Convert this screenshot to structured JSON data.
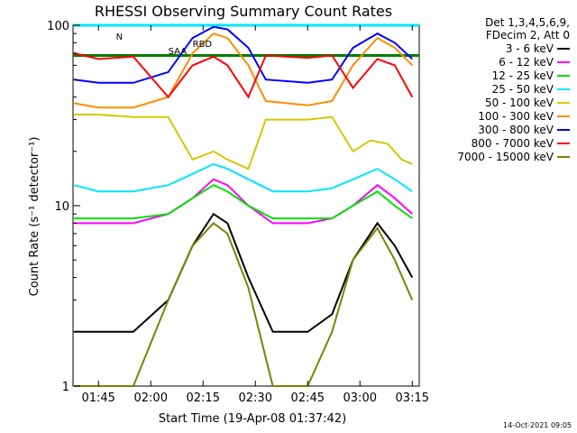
{
  "chart_data": {
    "type": "line",
    "title": "RHESSI Observing Summary Count Rates",
    "xlabel": "Start Time (19-Apr-08 01:37:42)",
    "ylabel": "Count Rate (s⁻¹ detector⁻¹)",
    "yscale": "log",
    "ylim": [
      1,
      100
    ],
    "xlim": [
      "01:37:42",
      "03:17:00"
    ],
    "x_ticks": [
      "01:45",
      "02:00",
      "02:15",
      "02:30",
      "02:45",
      "03:00",
      "03:15"
    ],
    "y_ticks": [
      "1",
      "10",
      "100"
    ],
    "legend_header": [
      "Det 1,3,4,5,6,9,",
      "FDecim 2, Att 0"
    ],
    "legend_placement": "right",
    "flags": [
      {
        "label": "N",
        "color": "#00e5ff"
      },
      {
        "label": "SAA",
        "color": "#008000"
      },
      {
        "label": "RBD",
        "color": "#008000"
      }
    ],
    "series": [
      {
        "name": "3 - 6 keV",
        "color": "#000000",
        "points": [
          [
            "01:38",
            2
          ],
          [
            "01:45",
            2
          ],
          [
            "01:55",
            2
          ],
          [
            "02:05",
            3
          ],
          [
            "02:12",
            6
          ],
          [
            "02:18",
            9
          ],
          [
            "02:22",
            8
          ],
          [
            "02:28",
            4
          ],
          [
            "02:35",
            2
          ],
          [
            "02:45",
            2
          ],
          [
            "02:52",
            2.5
          ],
          [
            "02:58",
            5
          ],
          [
            "03:05",
            8
          ],
          [
            "03:10",
            6
          ],
          [
            "03:15",
            4
          ]
        ]
      },
      {
        "name": "6 - 12 keV",
        "color": "#ff00ff",
        "points": [
          [
            "01:38",
            8
          ],
          [
            "01:45",
            8
          ],
          [
            "01:55",
            8
          ],
          [
            "02:05",
            9
          ],
          [
            "02:12",
            11
          ],
          [
            "02:18",
            14
          ],
          [
            "02:22",
            13
          ],
          [
            "02:28",
            10
          ],
          [
            "02:35",
            8
          ],
          [
            "02:45",
            8
          ],
          [
            "02:52",
            8.5
          ],
          [
            "02:58",
            10
          ],
          [
            "03:05",
            13
          ],
          [
            "03:10",
            11
          ],
          [
            "03:15",
            9
          ]
        ]
      },
      {
        "name": "12 - 25 keV",
        "color": "#00e000",
        "points": [
          [
            "01:38",
            8.5
          ],
          [
            "01:45",
            8.5
          ],
          [
            "01:55",
            8.5
          ],
          [
            "02:05",
            9
          ],
          [
            "02:12",
            11
          ],
          [
            "02:18",
            13
          ],
          [
            "02:22",
            12
          ],
          [
            "02:28",
            10
          ],
          [
            "02:35",
            8.5
          ],
          [
            "02:45",
            8.5
          ],
          [
            "02:52",
            8.5
          ],
          [
            "02:58",
            10
          ],
          [
            "03:05",
            12
          ],
          [
            "03:10",
            10
          ],
          [
            "03:15",
            8.5
          ]
        ]
      },
      {
        "name": "25 - 50 keV",
        "color": "#00e5ff",
        "points": [
          [
            "01:38",
            13
          ],
          [
            "01:45",
            12
          ],
          [
            "01:55",
            12
          ],
          [
            "02:05",
            13
          ],
          [
            "02:12",
            15
          ],
          [
            "02:18",
            17
          ],
          [
            "02:22",
            16
          ],
          [
            "02:28",
            14
          ],
          [
            "02:35",
            12
          ],
          [
            "02:45",
            12
          ],
          [
            "02:52",
            12.5
          ],
          [
            "02:58",
            14
          ],
          [
            "03:05",
            16
          ],
          [
            "03:10",
            14
          ],
          [
            "03:15",
            12
          ]
        ]
      },
      {
        "name": "50 - 100 keV",
        "color": "#d4c800",
        "points": [
          [
            "01:38",
            32
          ],
          [
            "01:45",
            32
          ],
          [
            "01:55",
            31
          ],
          [
            "02:05",
            31
          ],
          [
            "02:12",
            18
          ],
          [
            "02:18",
            20
          ],
          [
            "02:22",
            18
          ],
          [
            "02:28",
            16
          ],
          [
            "02:33",
            30
          ],
          [
            "02:45",
            30
          ],
          [
            "02:52",
            31
          ],
          [
            "02:58",
            20
          ],
          [
            "03:03",
            23
          ],
          [
            "03:08",
            22
          ],
          [
            "03:12",
            18
          ],
          [
            "03:15",
            17
          ]
        ]
      },
      {
        "name": "100 - 300 keV",
        "color": "#ff8c00",
        "points": [
          [
            "01:38",
            37
          ],
          [
            "01:45",
            35
          ],
          [
            "01:55",
            35
          ],
          [
            "02:05",
            40
          ],
          [
            "02:12",
            70
          ],
          [
            "02:18",
            90
          ],
          [
            "02:22",
            85
          ],
          [
            "02:28",
            60
          ],
          [
            "02:33",
            38
          ],
          [
            "02:45",
            36
          ],
          [
            "02:52",
            38
          ],
          [
            "02:58",
            60
          ],
          [
            "03:05",
            85
          ],
          [
            "03:10",
            75
          ],
          [
            "03:15",
            60
          ]
        ]
      },
      {
        "name": "300 - 800 keV",
        "color": "#0000ff",
        "points": [
          [
            "01:38",
            50
          ],
          [
            "01:45",
            48
          ],
          [
            "01:55",
            48
          ],
          [
            "02:05",
            55
          ],
          [
            "02:12",
            85
          ],
          [
            "02:18",
            98
          ],
          [
            "02:22",
            95
          ],
          [
            "02:28",
            75
          ],
          [
            "02:33",
            50
          ],
          [
            "02:45",
            48
          ],
          [
            "02:52",
            50
          ],
          [
            "02:58",
            75
          ],
          [
            "03:05",
            90
          ],
          [
            "03:10",
            80
          ],
          [
            "03:15",
            65
          ]
        ]
      },
      {
        "name": "800 - 7000 keV",
        "color": "#ff0000",
        "points": [
          [
            "01:38",
            70
          ],
          [
            "01:45",
            65
          ],
          [
            "01:55",
            67
          ],
          [
            "02:05",
            40
          ],
          [
            "02:12",
            60
          ],
          [
            "02:18",
            67
          ],
          [
            "02:22",
            60
          ],
          [
            "02:28",
            40
          ],
          [
            "02:33",
            68
          ],
          [
            "02:45",
            66
          ],
          [
            "02:52",
            68
          ],
          [
            "02:58",
            45
          ],
          [
            "03:05",
            65
          ],
          [
            "03:10",
            60
          ],
          [
            "03:15",
            40
          ]
        ]
      },
      {
        "name": "7000 - 15000 keV",
        "color": "#808000",
        "points": [
          [
            "01:38",
            1
          ],
          [
            "01:45",
            1
          ],
          [
            "01:55",
            1
          ],
          [
            "02:05",
            3
          ],
          [
            "02:12",
            6
          ],
          [
            "02:18",
            8
          ],
          [
            "02:22",
            7
          ],
          [
            "02:28",
            3.5
          ],
          [
            "02:35",
            1
          ],
          [
            "02:45",
            1
          ],
          [
            "02:52",
            2
          ],
          [
            "02:58",
            5
          ],
          [
            "03:05",
            7.5
          ],
          [
            "03:10",
            5
          ],
          [
            "03:15",
            3
          ]
        ]
      }
    ],
    "ref_lines": [
      {
        "color": "#008000",
        "y": 68
      },
      {
        "color": "#00e5ff",
        "y": 100
      }
    ],
    "timestamp": "14-Oct-2021 09:05"
  }
}
